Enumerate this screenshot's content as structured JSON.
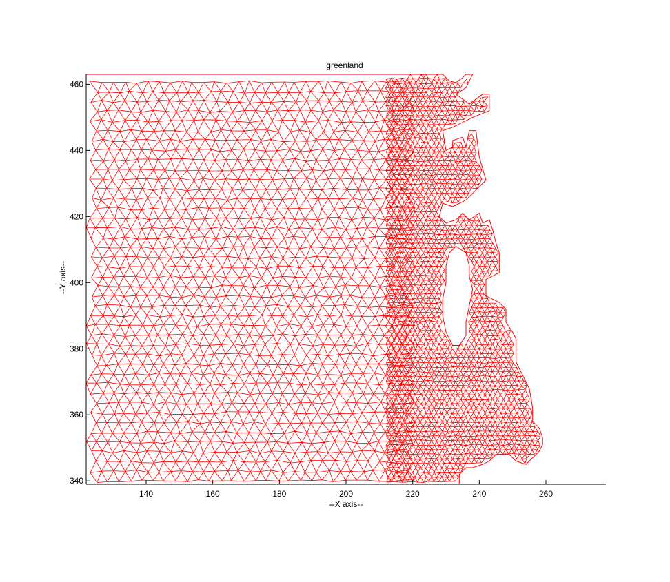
{
  "chart_data": {
    "type": "mesh",
    "title": "greenland",
    "xlabel": "--X axis--",
    "ylabel": "--Y axis--",
    "xlim": [
      122,
      278
    ],
    "ylim": [
      339,
      463
    ],
    "xticks": [
      140,
      160,
      180,
      200,
      220,
      240,
      260
    ],
    "yticks": [
      340,
      360,
      380,
      400,
      420,
      440,
      460
    ],
    "grid": false,
    "mesh_color": "#ff0000",
    "mesh_region": {
      "outer_boundary": [
        [
          122,
          463
        ],
        [
          229,
          463
        ],
        [
          231,
          461
        ],
        [
          233,
          460.5
        ],
        [
          235,
          462
        ],
        [
          236,
          463
        ],
        [
          238,
          463
        ],
        [
          236,
          459
        ],
        [
          233,
          457
        ],
        [
          237,
          454
        ],
        [
          241,
          457
        ],
        [
          243,
          457
        ],
        [
          243,
          452
        ],
        [
          238,
          450
        ],
        [
          232,
          447
        ],
        [
          229,
          446
        ],
        [
          230,
          440
        ],
        [
          232,
          441
        ],
        [
          232,
          443
        ],
        [
          235,
          444
        ],
        [
          236,
          441
        ],
        [
          237,
          446
        ],
        [
          239,
          446
        ],
        [
          240,
          438
        ],
        [
          242,
          431
        ],
        [
          240,
          429
        ],
        [
          238,
          427
        ],
        [
          236,
          425
        ],
        [
          232,
          423
        ],
        [
          229,
          424
        ],
        [
          228,
          420
        ],
        [
          230,
          418
        ],
        [
          233,
          419
        ],
        [
          235,
          421
        ],
        [
          237,
          419
        ],
        [
          240,
          421
        ],
        [
          241,
          418
        ],
        [
          243,
          419
        ],
        [
          244,
          416
        ],
        [
          245,
          412
        ],
        [
          246,
          409
        ],
        [
          246,
          403
        ],
        [
          244,
          402
        ],
        [
          242,
          401
        ],
        [
          242,
          396
        ],
        [
          244,
          395
        ],
        [
          246,
          394
        ],
        [
          248,
          392
        ],
        [
          248,
          388
        ],
        [
          250,
          385
        ],
        [
          251,
          383
        ],
        [
          251,
          380
        ],
        [
          251,
          376
        ],
        [
          253,
          372
        ],
        [
          255,
          368
        ],
        [
          256,
          362
        ],
        [
          256,
          358
        ],
        [
          258,
          356
        ],
        [
          259,
          353
        ],
        [
          259,
          351
        ],
        [
          258,
          349
        ],
        [
          256,
          347
        ],
        [
          254,
          345
        ],
        [
          251,
          346
        ],
        [
          249,
          348
        ],
        [
          247,
          348
        ],
        [
          245,
          348
        ],
        [
          243,
          346
        ],
        [
          241,
          345
        ],
        [
          238,
          344
        ],
        [
          236,
          344
        ],
        [
          234,
          342
        ],
        [
          234,
          339
        ],
        [
          122,
          339
        ]
      ],
      "holes": [
        [
          [
            233,
            411
          ],
          [
            236,
            409
          ],
          [
            237,
            405
          ],
          [
            237,
            402
          ],
          [
            238,
            398
          ],
          [
            237,
            393
          ],
          [
            236,
            388
          ],
          [
            236,
            384
          ],
          [
            234,
            381
          ],
          [
            232,
            381
          ],
          [
            230,
            385
          ],
          [
            229,
            390
          ],
          [
            229,
            395
          ],
          [
            230,
            400
          ],
          [
            230,
            405
          ],
          [
            231,
            409
          ]
        ]
      ],
      "cell_size": 3.4,
      "refined_cell_size": 1.6,
      "refine_from_x": 212
    }
  }
}
